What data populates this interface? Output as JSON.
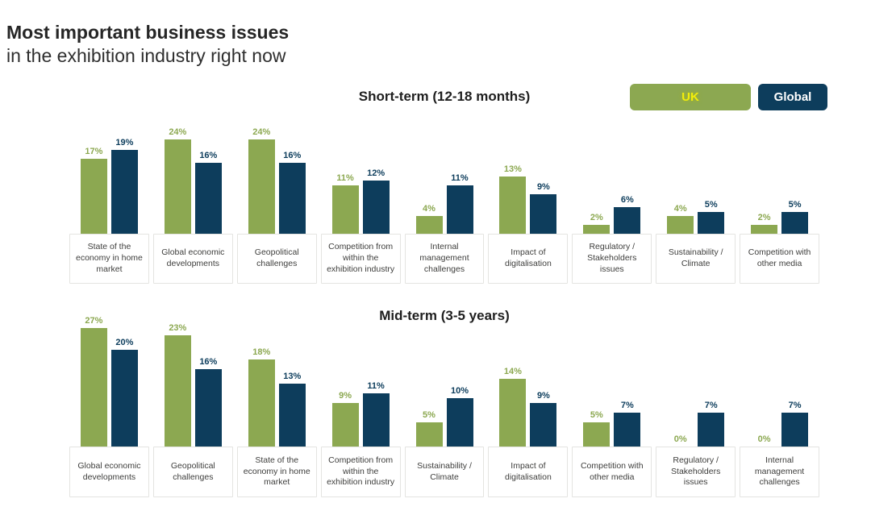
{
  "header": {
    "title_bold": "Most important business issues",
    "title_regular": "in the exhibition industry right now"
  },
  "legend": {
    "uk_label": "UK",
    "global_label": "Global"
  },
  "colors": {
    "uk_bar": "#8CA851",
    "global_bar": "#0D3D5C",
    "uk_legend_text": "#F2EE0B",
    "global_legend_text": "#FFFFFF"
  },
  "chart_data": [
    {
      "type": "bar",
      "title": "Short-term (12-18 months)",
      "value_suffix": "%",
      "ylim": [
        0,
        24
      ],
      "grid": false,
      "legend_position": "top-right",
      "categories": [
        "State of the economy in home market",
        "Global economic developments",
        "Geopolitical challenges",
        "Competition from within the exhibition industry",
        "Internal management challenges",
        "Impact of digitalisation",
        "Regulatory / Stakeholders issues",
        "Sustainability / Climate",
        "Competition with other media"
      ],
      "series": [
        {
          "name": "UK",
          "values": [
            17,
            24,
            24,
            11,
            4,
            13,
            2,
            4,
            2
          ]
        },
        {
          "name": "Global",
          "values": [
            19,
            16,
            16,
            12,
            11,
            9,
            6,
            5,
            5
          ]
        }
      ]
    },
    {
      "type": "bar",
      "title": "Mid-term (3-5 years)",
      "value_suffix": "%",
      "ylim": [
        0,
        27
      ],
      "grid": false,
      "legend_position": "top-right",
      "categories": [
        "Global economic developments",
        "Geopolitical challenges",
        "State of the economy in home market",
        "Competition from within the exhibition industry",
        "Sustainability / Climate",
        "Impact of digitalisation",
        "Competition with other media",
        "Regulatory / Stakeholders issues",
        "Internal management challenges"
      ],
      "series": [
        {
          "name": "UK",
          "values": [
            27,
            23,
            18,
            9,
            5,
            14,
            5,
            0,
            0
          ]
        },
        {
          "name": "Global",
          "values": [
            20,
            16,
            13,
            11,
            10,
            9,
            7,
            7,
            7
          ]
        }
      ]
    }
  ]
}
